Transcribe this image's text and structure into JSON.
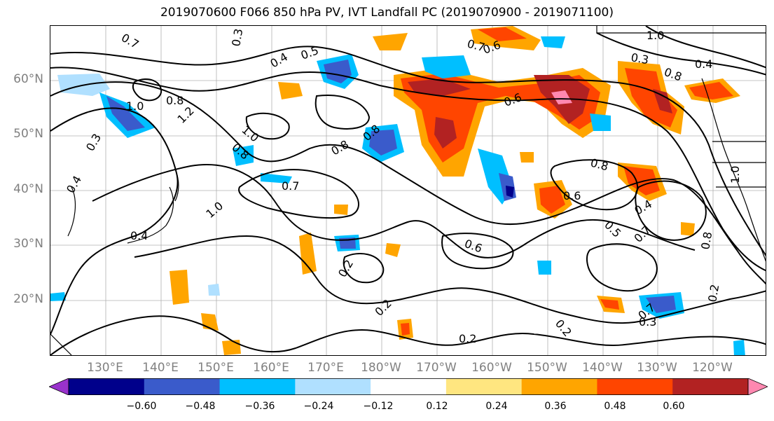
{
  "title": "2019070600 F066 850 hPa PV, IVT Landfall PC (2019070900 - 2019071100)",
  "lat_labels": [
    "60°N",
    "50°N",
    "40°N",
    "30°N",
    "20°N"
  ],
  "lon_labels": [
    "130°E",
    "140°E",
    "150°E",
    "160°E",
    "170°E",
    "180°W",
    "170°W",
    "160°W",
    "150°W",
    "140°W",
    "130°W",
    "120°W"
  ],
  "contour_labels": [
    "0.7",
    "0.3",
    "0.4",
    "0.5",
    "1.0",
    "0.8",
    "1.2",
    "0.8",
    "0.3",
    "0.4",
    "1.0",
    "0.8",
    "0.7",
    "1.0",
    "0.4",
    "0.2",
    "0.6",
    "0.2",
    "0.2",
    "0.2",
    "0.6",
    "0.8",
    "0.6",
    "0.5",
    "0.4",
    "0.7",
    "0.8",
    "1.0",
    "0.3",
    "0.2",
    "0.7",
    "0.6",
    "1.0",
    "0.8",
    "0.7",
    "0.3",
    "0.4",
    "0.8"
  ],
  "colorbar": {
    "ticks": [
      "−0.60",
      "−0.48",
      "−0.36",
      "−0.24",
      "−0.12",
      "0.12",
      "0.24",
      "0.36",
      "0.48",
      "0.60"
    ],
    "colors": [
      "#9932CC",
      "#00008B",
      "#3A5BCB",
      "#00BFFF",
      "#B0E0FF",
      "#FFFFFF",
      "#FFE680",
      "#FFA500",
      "#FF4500",
      "#B22222",
      "#FF88B0"
    ]
  }
}
